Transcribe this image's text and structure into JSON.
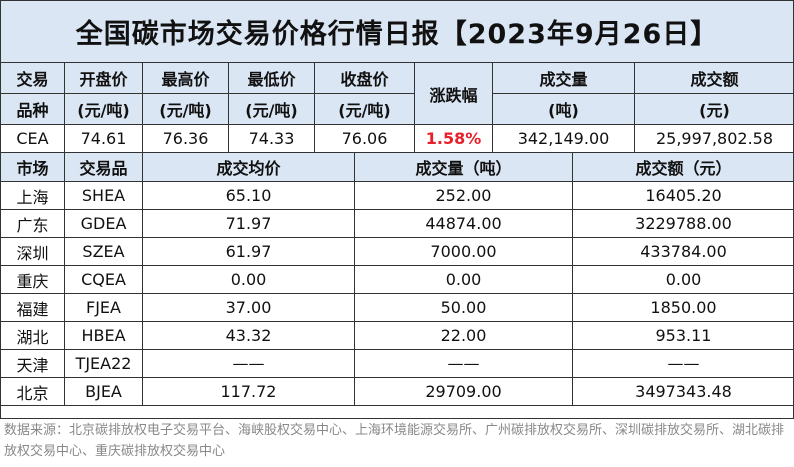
{
  "title": "全国碳市场交易价格行情日报【2023年9月26日】",
  "summary": {
    "header_line1": [
      "交易",
      "开盘价",
      "最高价",
      "最低价",
      "收盘价",
      "涨跌幅",
      "成交量",
      "成交额"
    ],
    "header_line2": [
      "品种",
      "(元/吨)",
      "(元/吨)",
      "(元/吨)",
      "(元/吨)",
      "",
      "(吨)",
      "(元)"
    ],
    "row": {
      "product": "CEA",
      "open": "74.61",
      "high": "76.36",
      "low": "74.33",
      "close": "76.06",
      "change": "1.58%",
      "volume": "342,149.00",
      "turnover": "25,997,802.58"
    }
  },
  "markets": {
    "header": [
      "市场",
      "交易品",
      "成交均价",
      "成交量（吨）",
      "成交额（元）"
    ],
    "rows": [
      {
        "market": "上海",
        "product": "SHEA",
        "avg": "65.10",
        "volume": "252.00",
        "turnover": "16405.20"
      },
      {
        "market": "广东",
        "product": "GDEA",
        "avg": "71.97",
        "volume": "44874.00",
        "turnover": "3229788.00"
      },
      {
        "market": "深圳",
        "product": "SZEA",
        "avg": "61.97",
        "volume": "7000.00",
        "turnover": "433784.00"
      },
      {
        "market": "重庆",
        "product": "CQEA",
        "avg": "0.00",
        "volume": "0.00",
        "turnover": "0.00"
      },
      {
        "market": "福建",
        "product": "FJEA",
        "avg": "37.00",
        "volume": "50.00",
        "turnover": "1850.00"
      },
      {
        "market": "湖北",
        "product": "HBEA",
        "avg": "43.32",
        "volume": "22.00",
        "turnover": "953.11"
      },
      {
        "market": "天津",
        "product": "TJEA22",
        "avg": "——",
        "volume": "——",
        "turnover": "——"
      },
      {
        "market": "北京",
        "product": "BJEA",
        "avg": "117.72",
        "volume": "29709.00",
        "turnover": "3497343.48"
      }
    ]
  },
  "source": "数据来源：北京碳排放权电子交易平台、海峡股权交易中心、上海环境能源交易所、广州碳排放权交易所、深圳碳排放交易所、湖北碳排放权交易中心、重庆碳排放权交易中心",
  "colors": {
    "header_bg": "#dbe6f4",
    "change_up": "#e8202a",
    "source_text": "#888888"
  }
}
